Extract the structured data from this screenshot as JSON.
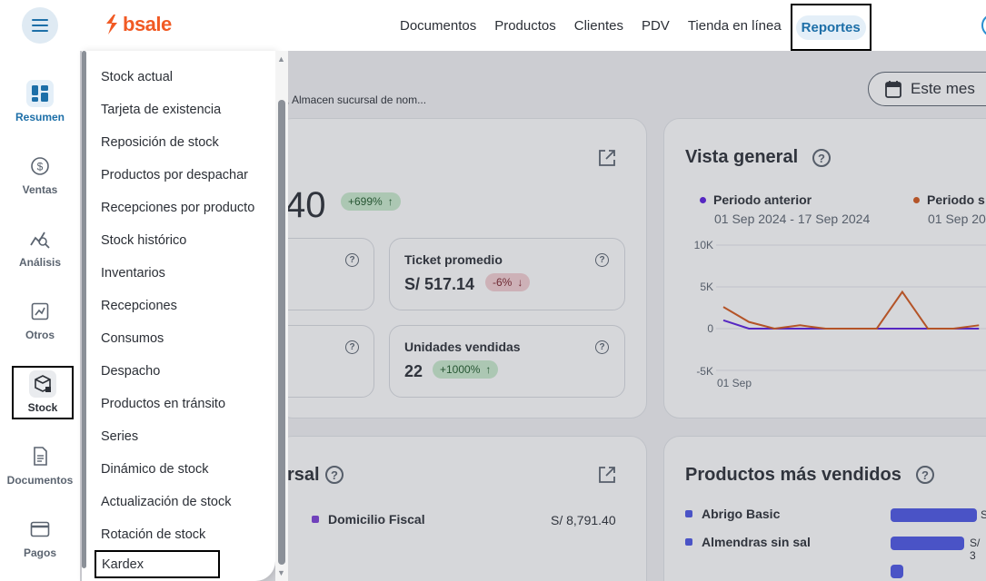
{
  "brand": {
    "name": "bsale"
  },
  "top_nav": {
    "items": [
      "Documentos",
      "Productos",
      "Clientes",
      "PDV",
      "Tienda en línea"
    ],
    "active": "Reportes"
  },
  "rail": {
    "items": [
      {
        "label": "Resumen",
        "icon": "dashboard-icon"
      },
      {
        "label": "Ventas",
        "icon": "dollar-icon"
      },
      {
        "label": "Análisis",
        "icon": "analysis-icon"
      },
      {
        "label": "Otros",
        "icon": "chart-icon"
      },
      {
        "label": "Stock",
        "icon": "box-icon"
      },
      {
        "label": "Documentos",
        "icon": "document-icon"
      },
      {
        "label": "Pagos",
        "icon": "card-icon"
      }
    ]
  },
  "stock_menu": {
    "items": [
      "Stock actual",
      "Tarjeta de existencia",
      "Reposición de stock",
      "Productos por despachar",
      "Recepciones por producto",
      "Stock histórico",
      "Inventarios",
      "Recepciones",
      "Consumos",
      "Despacho",
      "Productos en tránsito",
      "Series",
      "Dinámico de stock",
      "Actualización de stock",
      "Rotación de stock",
      "Kardex"
    ]
  },
  "filters": {
    "summary_text": ", Almacen sucursal de nom...",
    "date_button": "Este mes"
  },
  "sales_card": {
    "total_partial": "40",
    "total_badge": "+699%",
    "ticket_title": "Ticket promedio",
    "ticket_value": "S/ 517.14",
    "ticket_badge": "-6%",
    "units_title": "Unidades vendidas",
    "units_value": "22",
    "units_badge": "+1000%"
  },
  "overview_card": {
    "title": "Vista general",
    "legend": [
      {
        "name": "Periodo anterior",
        "range": "01 Sep 2024 - 17 Sep 2024",
        "color": "#5b1ee0"
      },
      {
        "name": "Periodo s",
        "range": "01 Sep 20",
        "color": "#d4581c"
      }
    ]
  },
  "chart_data": {
    "type": "line",
    "title": "Vista general",
    "y_ticks": [
      "10K",
      "5K",
      "0",
      "-5K"
    ],
    "ylim": [
      -5000,
      10000
    ],
    "x_tick": "01 Sep",
    "x": [
      1,
      2,
      3,
      4,
      5,
      6,
      7,
      8,
      9,
      10,
      11
    ],
    "series": [
      {
        "name": "Periodo anterior",
        "color": "#5b1ee0",
        "values": [
          1000,
          0,
          0,
          0,
          0,
          0,
          0,
          0,
          0,
          0,
          0
        ]
      },
      {
        "name": "Periodo s",
        "color": "#d4581c",
        "values": [
          2600,
          800,
          0,
          400,
          0,
          0,
          0,
          4400,
          0,
          0,
          400
        ]
      }
    ]
  },
  "branch_card": {
    "title_partial": "rsal",
    "rows": [
      {
        "name": "Domicilio Fiscal",
        "value": "S/ 8,791.40"
      }
    ]
  },
  "top_products_card": {
    "title": "Productos más vendidos",
    "rows": [
      {
        "name": "Abrigo Basic",
        "value_partial": "S"
      },
      {
        "name": "Almendras sin sal",
        "value_partial": "S/ 3"
      }
    ]
  },
  "colors": {
    "accent": "#1d6fa8",
    "brand": "#f15a24",
    "bar": "#4c57e6",
    "branch_marker": "#7d3fd8"
  }
}
